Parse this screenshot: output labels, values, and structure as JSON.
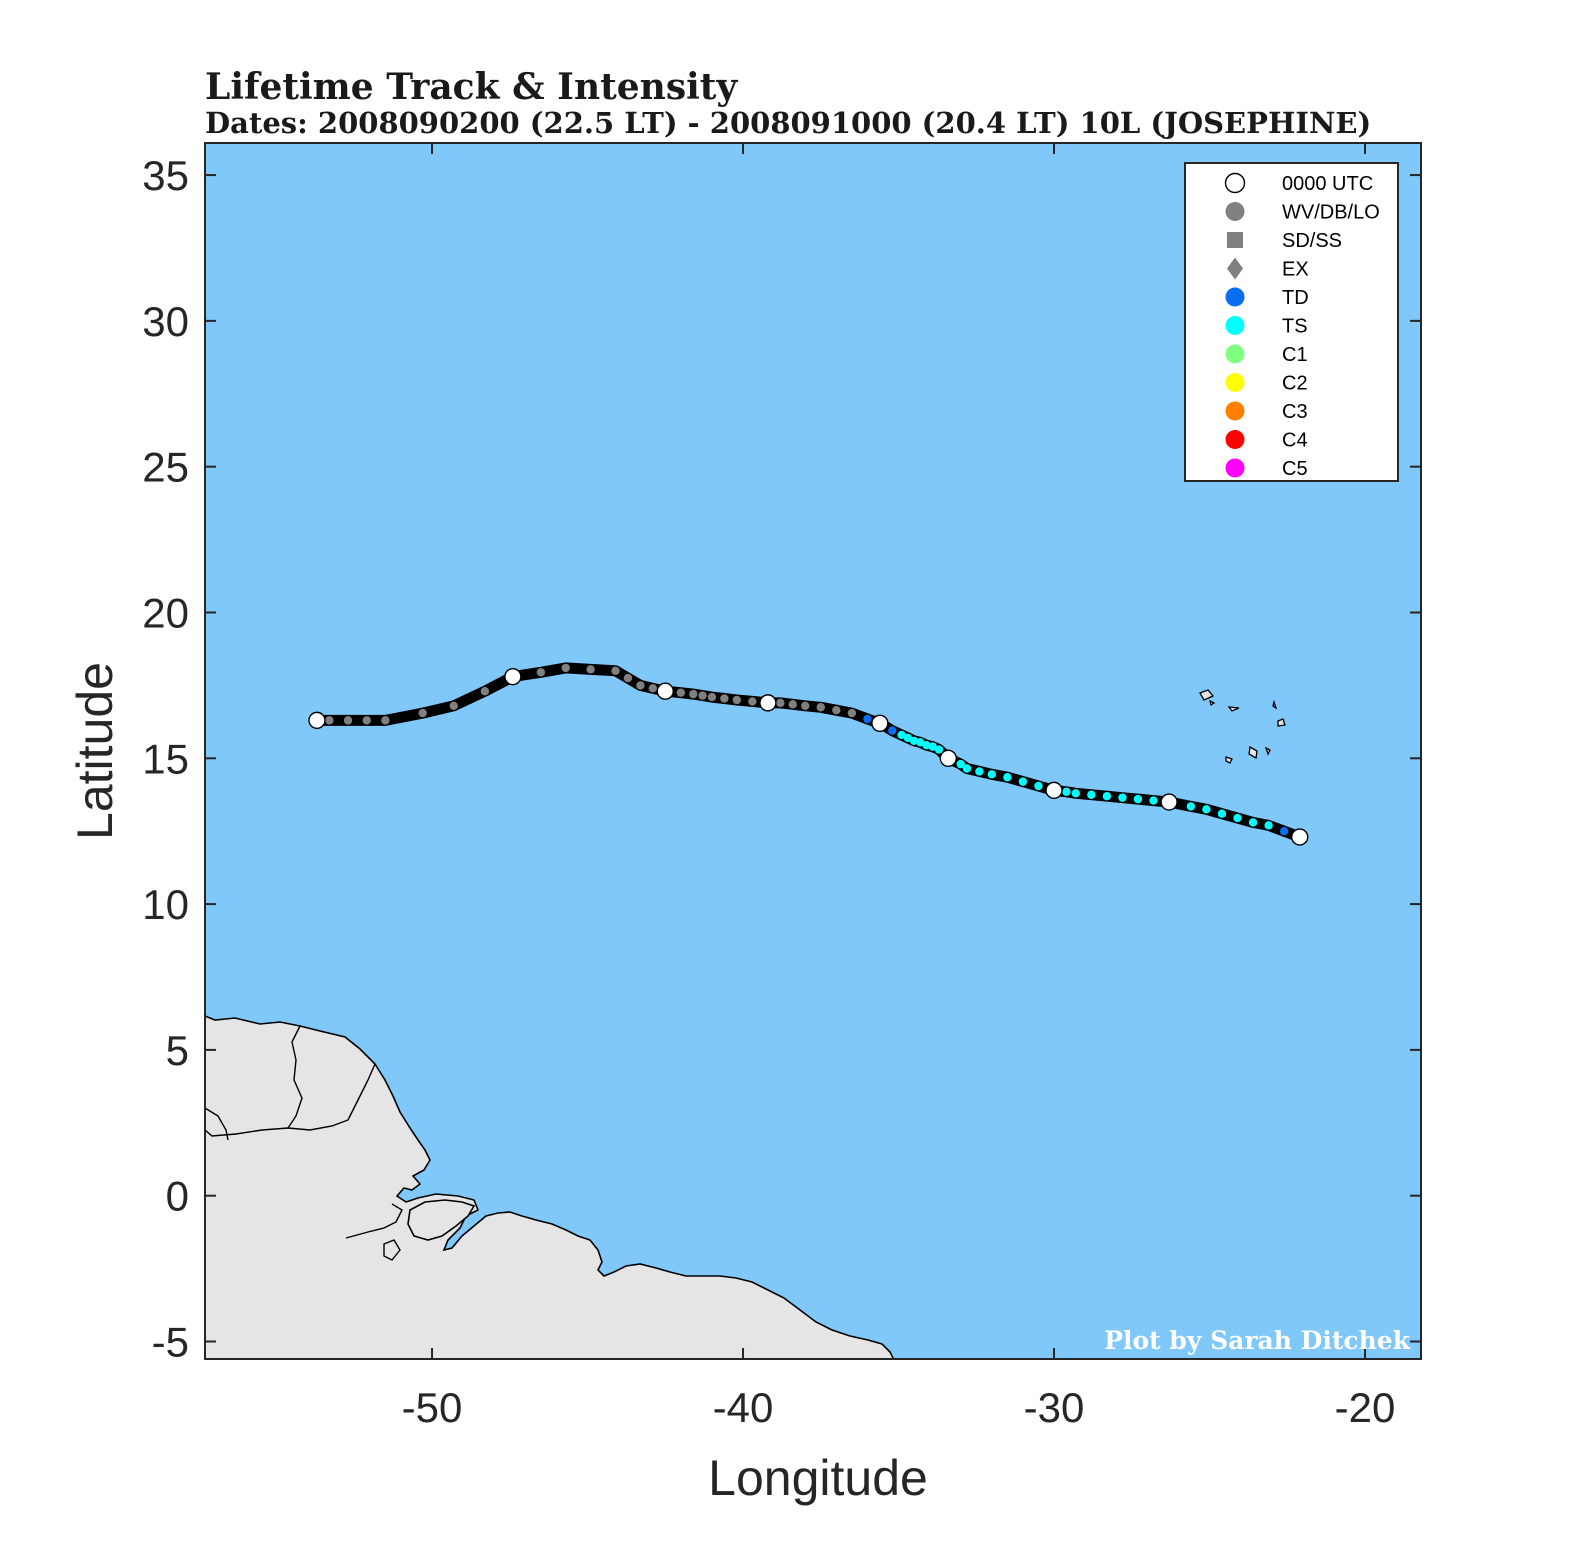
{
  "title": "Lifetime Track & Intensity",
  "subtitle": "Dates: 2008090200 (22.5 LT) - 2008091000 (20.4 LT) 10L (JOSEPHINE)",
  "credit": "Plot by Sarah Ditchek",
  "colors": {
    "ocean": "#80c8fa",
    "land": "#e5e5e5",
    "track_line": "#000000",
    "WV/DB/LO": "#808080",
    "TD": "#0a6ef0",
    "TS": "#00ffff",
    "C1": "#80ff80",
    "C2": "#ffff00",
    "C3": "#ff8000",
    "C4": "#ff0000",
    "C5": "#ff00ff",
    "0000 UTC": "#ffffff"
  },
  "legend": {
    "placement": "top-right",
    "items": [
      {
        "label": "0000 UTC",
        "symbol": "open-circle"
      },
      {
        "label": "WV/DB/LO",
        "symbol": "circle"
      },
      {
        "label": "SD/SS",
        "symbol": "square"
      },
      {
        "label": "EX",
        "symbol": "diamond"
      },
      {
        "label": "TD",
        "symbol": "circle"
      },
      {
        "label": "TS",
        "symbol": "circle"
      },
      {
        "label": "C1",
        "symbol": "circle"
      },
      {
        "label": "C2",
        "symbol": "circle"
      },
      {
        "label": "C3",
        "symbol": "circle"
      },
      {
        "label": "C4",
        "symbol": "circle"
      },
      {
        "label": "C5",
        "symbol": "circle"
      }
    ]
  },
  "chart_data": {
    "type": "scatter",
    "xlabel": "Longitude",
    "ylabel": "Latitude",
    "xlim": [
      -57.3,
      -18.2
    ],
    "ylim": [
      -5.6,
      36.1
    ],
    "xticks": [
      -50,
      -40,
      -30,
      -20
    ],
    "yticks": [
      -5,
      0,
      5,
      10,
      15,
      20,
      25,
      30,
      35
    ],
    "xtick_labels": [
      "-50",
      "-40",
      "-30",
      "-20"
    ],
    "ytick_labels": [
      "-5",
      "0",
      "5",
      "10",
      "15",
      "20",
      "25",
      "30",
      "35"
    ],
    "grid": false,
    "track": [
      {
        "lon": -22.1,
        "lat": 12.3,
        "cat": "0000 UTC"
      },
      {
        "lon": -22.6,
        "lat": 12.5,
        "cat": "TD"
      },
      {
        "lon": -23.1,
        "lat": 12.7,
        "cat": "TS"
      },
      {
        "lon": -23.6,
        "lat": 12.8,
        "cat": "TS"
      },
      {
        "lon": -24.1,
        "lat": 12.95,
        "cat": "TS"
      },
      {
        "lon": -24.6,
        "lat": 13.1,
        "cat": "TS"
      },
      {
        "lon": -25.1,
        "lat": 13.25,
        "cat": "TS"
      },
      {
        "lon": -25.6,
        "lat": 13.35,
        "cat": "TS"
      },
      {
        "lon": -26.3,
        "lat": 13.5,
        "cat": "0000 UTC"
      },
      {
        "lon": -26.8,
        "lat": 13.55,
        "cat": "TS"
      },
      {
        "lon": -27.3,
        "lat": 13.6,
        "cat": "TS"
      },
      {
        "lon": -27.8,
        "lat": 13.65,
        "cat": "TS"
      },
      {
        "lon": -28.3,
        "lat": 13.7,
        "cat": "TS"
      },
      {
        "lon": -28.8,
        "lat": 13.75,
        "cat": "TS"
      },
      {
        "lon": -29.3,
        "lat": 13.8,
        "cat": "TS"
      },
      {
        "lon": -29.6,
        "lat": 13.85,
        "cat": "TS"
      },
      {
        "lon": -30.0,
        "lat": 13.9,
        "cat": "0000 UTC"
      },
      {
        "lon": -30.5,
        "lat": 14.05,
        "cat": "TS"
      },
      {
        "lon": -31.0,
        "lat": 14.2,
        "cat": "TS"
      },
      {
        "lon": -31.5,
        "lat": 14.35,
        "cat": "TS"
      },
      {
        "lon": -32.0,
        "lat": 14.45,
        "cat": "TS"
      },
      {
        "lon": -32.4,
        "lat": 14.55,
        "cat": "TS"
      },
      {
        "lon": -32.8,
        "lat": 14.65,
        "cat": "TS"
      },
      {
        "lon": -33.0,
        "lat": 14.8,
        "cat": "TS"
      },
      {
        "lon": -33.4,
        "lat": 15.0,
        "cat": "0000 UTC"
      },
      {
        "lon": -33.7,
        "lat": 15.3,
        "cat": "TS"
      },
      {
        "lon": -33.9,
        "lat": 15.4,
        "cat": "TS"
      },
      {
        "lon": -34.1,
        "lat": 15.45,
        "cat": "TS"
      },
      {
        "lon": -34.3,
        "lat": 15.55,
        "cat": "TS"
      },
      {
        "lon": -34.5,
        "lat": 15.6,
        "cat": "TS"
      },
      {
        "lon": -34.7,
        "lat": 15.7,
        "cat": "TS"
      },
      {
        "lon": -34.9,
        "lat": 15.8,
        "cat": "TS"
      },
      {
        "lon": -35.2,
        "lat": 15.95,
        "cat": "TD"
      },
      {
        "lon": -35.6,
        "lat": 16.2,
        "cat": "0000 UTC"
      },
      {
        "lon": -36.0,
        "lat": 16.35,
        "cat": "TD"
      },
      {
        "lon": -36.5,
        "lat": 16.55,
        "cat": "WV/DB/LO"
      },
      {
        "lon": -37.0,
        "lat": 16.65,
        "cat": "WV/DB/LO"
      },
      {
        "lon": -37.5,
        "lat": 16.75,
        "cat": "WV/DB/LO"
      },
      {
        "lon": -38.0,
        "lat": 16.8,
        "cat": "WV/DB/LO"
      },
      {
        "lon": -38.4,
        "lat": 16.85,
        "cat": "WV/DB/LO"
      },
      {
        "lon": -38.8,
        "lat": 16.9,
        "cat": "WV/DB/LO"
      },
      {
        "lon": -39.2,
        "lat": 16.9,
        "cat": "0000 UTC"
      },
      {
        "lon": -39.7,
        "lat": 16.95,
        "cat": "WV/DB/LO"
      },
      {
        "lon": -40.2,
        "lat": 17.0,
        "cat": "WV/DB/LO"
      },
      {
        "lon": -40.6,
        "lat": 17.05,
        "cat": "WV/DB/LO"
      },
      {
        "lon": -41.0,
        "lat": 17.1,
        "cat": "WV/DB/LO"
      },
      {
        "lon": -41.3,
        "lat": 17.15,
        "cat": "WV/DB/LO"
      },
      {
        "lon": -41.6,
        "lat": 17.2,
        "cat": "WV/DB/LO"
      },
      {
        "lon": -42.0,
        "lat": 17.25,
        "cat": "WV/DB/LO"
      },
      {
        "lon": -42.5,
        "lat": 17.3,
        "cat": "0000 UTC"
      },
      {
        "lon": -42.9,
        "lat": 17.4,
        "cat": "WV/DB/LO"
      },
      {
        "lon": -43.3,
        "lat": 17.5,
        "cat": "WV/DB/LO"
      },
      {
        "lon": -43.7,
        "lat": 17.75,
        "cat": "WV/DB/LO"
      },
      {
        "lon": -44.1,
        "lat": 18.0,
        "cat": "WV/DB/LO"
      },
      {
        "lon": -44.9,
        "lat": 18.05,
        "cat": "WV/DB/LO"
      },
      {
        "lon": -45.7,
        "lat": 18.1,
        "cat": "WV/DB/LO"
      },
      {
        "lon": -46.5,
        "lat": 17.95,
        "cat": "WV/DB/LO"
      },
      {
        "lon": -47.4,
        "lat": 17.8,
        "cat": "0000 UTC"
      },
      {
        "lon": -48.3,
        "lat": 17.3,
        "cat": "WV/DB/LO"
      },
      {
        "lon": -49.3,
        "lat": 16.8,
        "cat": "WV/DB/LO"
      },
      {
        "lon": -50.3,
        "lat": 16.55,
        "cat": "WV/DB/LO"
      },
      {
        "lon": -51.5,
        "lat": 16.3,
        "cat": "WV/DB/LO"
      },
      {
        "lon": -52.1,
        "lat": 16.3,
        "cat": "WV/DB/LO"
      },
      {
        "lon": -52.7,
        "lat": 16.3,
        "cat": "WV/DB/LO"
      },
      {
        "lon": -53.3,
        "lat": 16.3,
        "cat": "WV/DB/LO"
      },
      {
        "lon": -53.7,
        "lat": 16.3,
        "cat": "0000 UTC"
      }
    ]
  }
}
